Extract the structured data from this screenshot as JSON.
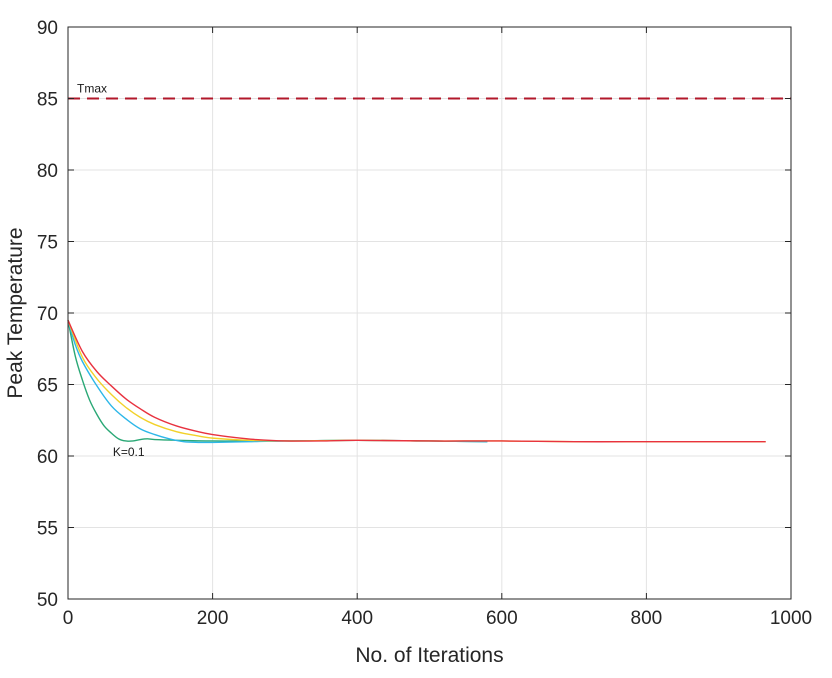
{
  "chart_data": {
    "type": "line",
    "xlabel": "No. of Iterations",
    "ylabel": "Peak Temperature",
    "xlim": [
      0,
      1000
    ],
    "ylim": [
      50,
      90
    ],
    "xticks": [
      0,
      200,
      400,
      600,
      800,
      1000
    ],
    "yticks": [
      50,
      55,
      60,
      65,
      70,
      75,
      80,
      85,
      90
    ],
    "grid": true,
    "threshold": {
      "label": "Tmax",
      "value": 85,
      "color": "#b2182b",
      "style": "dashed"
    },
    "annotations": [
      {
        "text": "K=0.1",
        "x": 62,
        "y": 60.0
      }
    ],
    "series": [
      {
        "color": "#2aa876",
        "x": [
          0,
          10,
          20,
          30,
          40,
          50,
          60,
          70,
          80,
          90,
          100,
          110,
          120,
          150,
          200,
          250,
          300,
          400,
          500,
          580
        ],
        "y": [
          69.5,
          67.0,
          65.3,
          63.9,
          62.9,
          62.1,
          61.6,
          61.2,
          61.05,
          61.05,
          61.15,
          61.2,
          61.15,
          61.1,
          61.05,
          61.05,
          61.05,
          61.1,
          61.05,
          61.0
        ]
      },
      {
        "color": "#2db7e8",
        "x": [
          0,
          10,
          20,
          40,
          60,
          80,
          100,
          120,
          140,
          160,
          180,
          200,
          250,
          300,
          400,
          500,
          580
        ],
        "y": [
          69.5,
          67.8,
          66.6,
          64.9,
          63.5,
          62.6,
          61.9,
          61.5,
          61.2,
          61.0,
          60.95,
          60.95,
          61.0,
          61.05,
          61.1,
          61.05,
          61.0
        ]
      },
      {
        "color": "#f2d12a",
        "x": [
          0,
          20,
          40,
          60,
          80,
          100,
          120,
          150,
          180,
          200,
          250,
          300,
          400,
          500,
          600,
          700,
          800,
          900,
          965
        ],
        "y": [
          69.5,
          66.9,
          65.4,
          64.3,
          63.4,
          62.7,
          62.2,
          61.7,
          61.4,
          61.25,
          61.1,
          61.05,
          61.1,
          61.05,
          61.05,
          61.0,
          61.0,
          61.0,
          61.0
        ]
      },
      {
        "color": "#e8323f",
        "x": [
          0,
          20,
          40,
          60,
          80,
          100,
          120,
          150,
          180,
          200,
          230,
          260,
          300,
          350,
          400,
          500,
          600,
          700,
          800,
          900,
          965
        ],
        "y": [
          69.5,
          67.3,
          65.9,
          64.9,
          64.0,
          63.3,
          62.7,
          62.1,
          61.7,
          61.5,
          61.3,
          61.15,
          61.05,
          61.05,
          61.1,
          61.05,
          61.05,
          61.0,
          61.0,
          61.0,
          61.0
        ]
      }
    ]
  }
}
